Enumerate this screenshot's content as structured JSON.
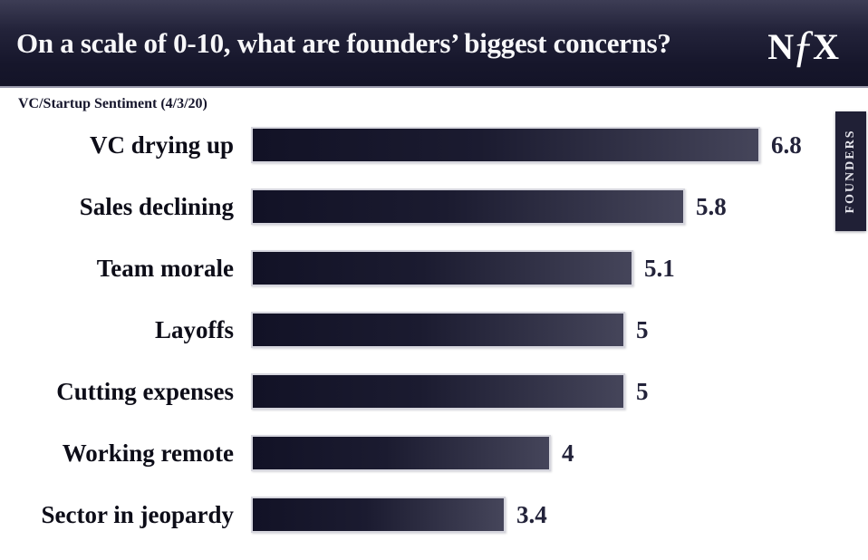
{
  "header": {
    "title": "On a scale of 0-10, what are founders’ biggest concerns?",
    "logo_n": "N",
    "logo_f": "ƒ",
    "logo_x": "X"
  },
  "side_tab": {
    "label": "FOUNDERS"
  },
  "chart_data": {
    "type": "bar",
    "orientation": "horizontal",
    "title": "On a scale of 0-10, what are founders’ biggest concerns?",
    "subtitle": "VC/Startup Sentiment (4/3/20)",
    "categories": [
      "VC drying up",
      "Sales declining",
      "Team morale",
      "Layoffs",
      "Cutting expenses",
      "Working remote",
      "Sector in jeopardy"
    ],
    "values": [
      6.8,
      5.8,
      5.1,
      5,
      5,
      4,
      3.4
    ],
    "value_labels": [
      "6.8",
      "5.8",
      "5.1",
      "5",
      "5",
      "4",
      "3.4"
    ],
    "xlabel": "",
    "ylabel": "",
    "xlim": [
      0,
      10
    ],
    "grid": false,
    "legend": null,
    "colors": {
      "header_bg": "#1b1b30",
      "bar_gradient_start": "#121226",
      "bar_gradient_end": "#45455a",
      "bar_border": "#d6d6de",
      "category_label": "#0d0d18",
      "value_label": "#23233a",
      "tab_bg": "#202036",
      "title_text": "#f7f7f9"
    }
  }
}
